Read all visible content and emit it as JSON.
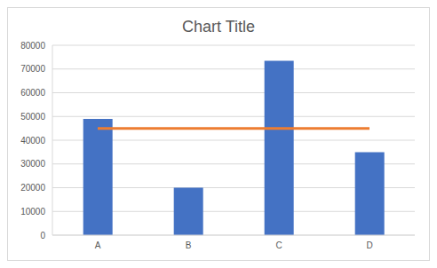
{
  "chart_data": {
    "type": "bar",
    "title": "Chart Title",
    "categories": [
      "A",
      "B",
      "C",
      "D"
    ],
    "series": [
      {
        "type": "bar",
        "color": "#4472c4",
        "values": [
          49000,
          20000,
          73500,
          35000
        ]
      },
      {
        "type": "line",
        "color": "#ed7d31",
        "values": [
          45000,
          45000,
          45000,
          45000
        ]
      }
    ],
    "ylim": [
      0,
      80000
    ],
    "yticks": [
      0,
      10000,
      20000,
      30000,
      40000,
      50000,
      60000,
      70000,
      80000
    ],
    "grid": true
  }
}
